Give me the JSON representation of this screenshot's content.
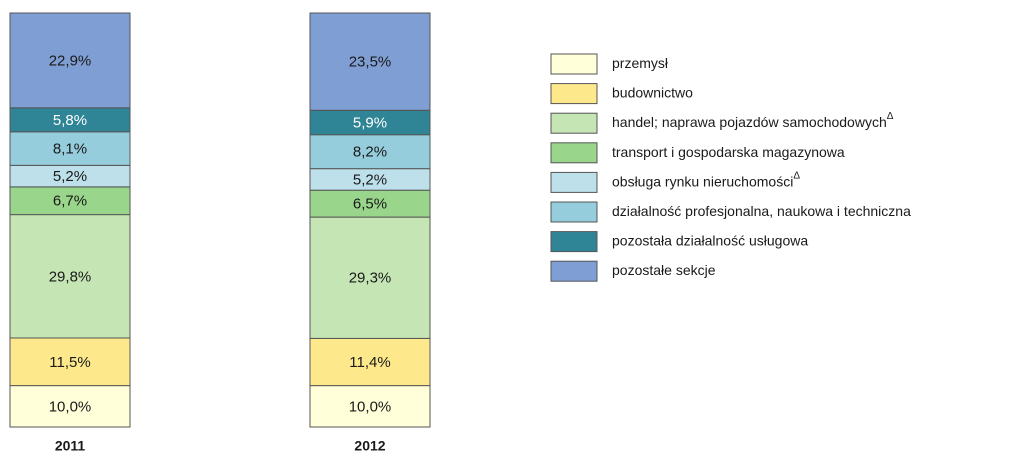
{
  "chart_data": {
    "type": "stacked_bar",
    "categories": [
      "2011",
      "2012"
    ],
    "ylim": [
      0,
      100
    ],
    "series": [
      {
        "name": "przemysł",
        "color": "#ffffd9",
        "values": [
          10.0,
          10.0
        ],
        "value_labels": [
          "10,0%",
          "10,0%"
        ]
      },
      {
        "name": "budownictwo",
        "color": "#fde98b",
        "values": [
          11.5,
          11.4
        ],
        "value_labels": [
          "11,5%",
          "11,4%"
        ]
      },
      {
        "name": "handel; naprawa pojazdów samochodowych",
        "superscript": "Δ",
        "color": "#c5e6b4",
        "values": [
          29.8,
          29.3
        ],
        "value_labels": [
          "29,8%",
          "29,3%"
        ]
      },
      {
        "name": "transport i gospodarska magazynowa",
        "color": "#99d58a",
        "values": [
          6.7,
          6.5
        ],
        "value_labels": [
          "6,7%",
          "6,5%"
        ]
      },
      {
        "name": "obsługa rynku nieruchomości",
        "superscript": "Δ",
        "color": "#bde0ea",
        "values": [
          5.2,
          5.2
        ],
        "value_labels": [
          "5,2%",
          "5,2%"
        ]
      },
      {
        "name": "działalność profesjonalna, naukowa i techniczna",
        "color": "#95cddd",
        "values": [
          8.1,
          8.2
        ],
        "value_labels": [
          "8,1%",
          "8,2%"
        ]
      },
      {
        "name": "pozostała działalność usługowa",
        "color": "#2f8596",
        "values": [
          5.8,
          5.9
        ],
        "value_labels": [
          "5,8%",
          "5,9%"
        ]
      },
      {
        "name": "pozostałe sekcje",
        "color": "#7f9fd4",
        "values": [
          22.9,
          23.5
        ],
        "value_labels": [
          "22,9%",
          "23,5%"
        ]
      }
    ]
  }
}
